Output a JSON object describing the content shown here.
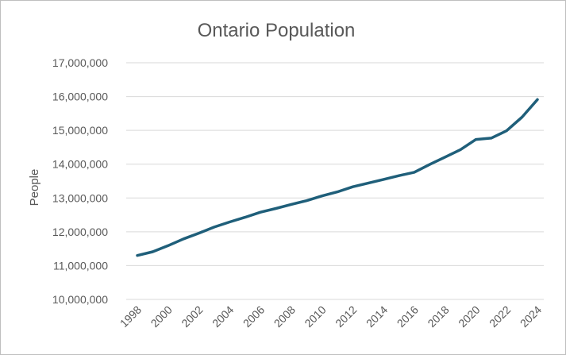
{
  "chart_data": {
    "type": "line",
    "title": "Ontario Population",
    "ylabel": "People",
    "xlabel": "",
    "x": [
      1998,
      1999,
      2000,
      2001,
      2002,
      2003,
      2004,
      2005,
      2006,
      2007,
      2008,
      2009,
      2010,
      2011,
      2012,
      2013,
      2014,
      2015,
      2016,
      2017,
      2018,
      2019,
      2020,
      2021,
      2022,
      2023,
      2024
    ],
    "series": [
      {
        "values": [
          11300000,
          11410000,
          11590000,
          11790000,
          11960000,
          12140000,
          12290000,
          12430000,
          12580000,
          12690000,
          12810000,
          12920000,
          13060000,
          13180000,
          13330000,
          13440000,
          13550000,
          13660000,
          13760000,
          13990000,
          14210000,
          14430000,
          14730000,
          14770000,
          14990000,
          15390000,
          15910000
        ],
        "color": "#1f5f7a"
      }
    ],
    "xticks": [
      "1998",
      "2000",
      "2002",
      "2004",
      "2006",
      "2008",
      "2010",
      "2012",
      "2014",
      "2016",
      "2018",
      "2020",
      "2022",
      "2024"
    ],
    "yticks": [
      "10,000,000",
      "11,000,000",
      "12,000,000",
      "13,000,000",
      "14,000,000",
      "15,000,000",
      "16,000,000",
      "17,000,000"
    ],
    "ylim": [
      10000000,
      17000000
    ],
    "grid": true,
    "legend": "none"
  },
  "colors": {
    "line": "#1f5f7a",
    "grid": "#d9d9d9",
    "text": "#595959"
  }
}
